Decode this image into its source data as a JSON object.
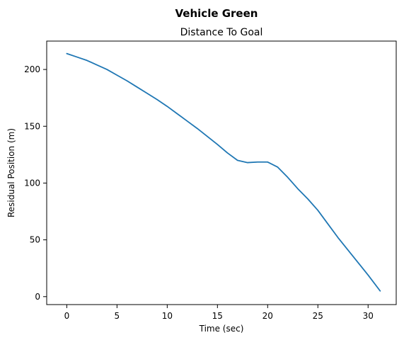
{
  "chart_data": {
    "type": "line",
    "suptitle": "Vehicle Green",
    "title": "Distance To Goal",
    "xlabel": "Time (sec)",
    "ylabel": "Residual Position (m)",
    "xlim": [
      -2.0,
      32.8
    ],
    "ylim": [
      -7,
      225
    ],
    "xticks": [
      0,
      5,
      10,
      15,
      20,
      25,
      30
    ],
    "yticks": [
      0,
      50,
      100,
      150,
      200
    ],
    "grid": false,
    "series": [
      {
        "color": "#1f77b4",
        "x": [
          0,
          1,
          2,
          3,
          4,
          5,
          6,
          7,
          8,
          9,
          10,
          11,
          12,
          13,
          14,
          15,
          16,
          17,
          18,
          19,
          20,
          21,
          22,
          23,
          24,
          25,
          26,
          27,
          28,
          29,
          30,
          31.2
        ],
        "y": [
          214,
          211,
          208,
          204,
          200,
          195,
          190,
          184.5,
          179,
          173.5,
          167.5,
          161,
          154.5,
          148,
          141,
          134,
          126.5,
          120,
          118,
          118.5,
          118.5,
          114,
          105,
          95,
          86,
          76,
          64,
          52,
          41,
          30,
          19,
          5
        ]
      }
    ]
  }
}
